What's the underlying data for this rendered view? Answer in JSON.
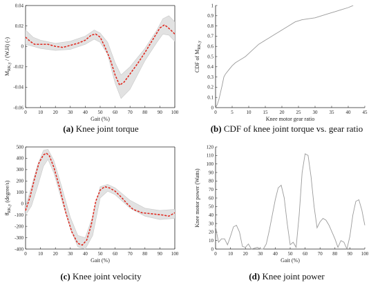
{
  "chart_data": [
    {
      "type": "line",
      "caption_letter": "(a)",
      "caption_text": "Knee joint torque",
      "xlabel": "Gait (%)",
      "ylabel_main": "M",
      "ylabel_sub": "RK,y",
      "ylabel_tail": "/ (W.H) (-)",
      "xlim": [
        0,
        100
      ],
      "ylim": [
        -0.06,
        0.04
      ],
      "xticks": [
        0,
        10,
        20,
        30,
        40,
        50,
        60,
        70,
        80,
        90,
        100
      ],
      "yticks": [
        -0.06,
        -0.04,
        -0.02,
        0,
        0.02,
        0.04
      ],
      "ytick_labels": [
        "-0.06",
        "-0.04",
        "-0.02",
        "0",
        "0.02",
        "0.04"
      ],
      "box": true,
      "series": [
        {
          "style": "mean-dashed-red",
          "x": [
            0,
            3,
            6,
            10,
            15,
            20,
            25,
            30,
            35,
            40,
            44,
            47,
            50,
            53,
            57,
            60,
            63,
            66,
            70,
            75,
            80,
            85,
            90,
            93,
            95,
            98,
            100
          ],
          "y": [
            0.009,
            0.005,
            0.002,
            0.002,
            0.002,
            0.0,
            -0.001,
            0.001,
            0.003,
            0.006,
            0.011,
            0.012,
            0.009,
            0.0,
            -0.014,
            -0.028,
            -0.038,
            -0.035,
            -0.027,
            -0.017,
            -0.006,
            0.006,
            0.018,
            0.021,
            0.019,
            0.015,
            0.012
          ]
        },
        {
          "style": "gray-envelope-upper",
          "x": [
            0,
            5,
            10,
            20,
            30,
            40,
            46,
            50,
            55,
            60,
            64,
            70,
            80,
            88,
            92,
            96,
            100
          ],
          "y": [
            0.016,
            0.009,
            0.006,
            0.003,
            0.005,
            0.01,
            0.016,
            0.013,
            0.004,
            -0.016,
            -0.028,
            -0.02,
            -0.002,
            0.016,
            0.027,
            0.03,
            0.024
          ]
        },
        {
          "style": "gray-envelope-lower",
          "x": [
            0,
            5,
            10,
            20,
            30,
            40,
            46,
            50,
            55,
            60,
            64,
            70,
            80,
            88,
            92,
            96,
            100
          ],
          "y": [
            0.002,
            0.0,
            -0.002,
            -0.004,
            -0.003,
            0.002,
            0.007,
            0.004,
            -0.008,
            -0.036,
            -0.051,
            -0.042,
            -0.014,
            0.004,
            0.012,
            0.011,
            0.005
          ]
        }
      ]
    },
    {
      "type": "line",
      "caption_letter": "(b)",
      "caption_text": "CDF of knee joint torque vs. gear ratio",
      "xlabel": "Knee motor gear ratio",
      "ylabel_main": "CDF of M",
      "ylabel_sub": "RK,y",
      "ylabel_tail": "",
      "xlim": [
        0,
        45
      ],
      "ylim": [
        0,
        1
      ],
      "xticks": [
        0,
        5,
        10,
        15,
        20,
        25,
        30,
        35,
        40,
        45
      ],
      "yticks": [
        0,
        0.1,
        0.2,
        0.3,
        0.4,
        0.5,
        0.6,
        0.7,
        0.8,
        0.9,
        1
      ],
      "ytick_labels": [
        "0",
        "0.1",
        "0.2",
        "0.3",
        "0.4",
        "0.5",
        "0.6",
        "0.7",
        "0.8",
        "0.9",
        "1"
      ],
      "box": false,
      "series": [
        {
          "style": "gray-step",
          "x": [
            0,
            0.5,
            1,
            1.5,
            2,
            2.5,
            3,
            4,
            5,
            6,
            7,
            8,
            9,
            10,
            11,
            12,
            13,
            14,
            15,
            16,
            17,
            18,
            19,
            20,
            22,
            24,
            26,
            28,
            30,
            32,
            34,
            36,
            38,
            40,
            41.5
          ],
          "y": [
            0,
            0.03,
            0.08,
            0.15,
            0.22,
            0.3,
            0.33,
            0.37,
            0.41,
            0.44,
            0.46,
            0.48,
            0.5,
            0.53,
            0.56,
            0.59,
            0.62,
            0.64,
            0.66,
            0.68,
            0.7,
            0.72,
            0.74,
            0.76,
            0.8,
            0.84,
            0.86,
            0.87,
            0.88,
            0.9,
            0.92,
            0.94,
            0.96,
            0.98,
            1.0
          ]
        }
      ]
    },
    {
      "type": "line",
      "caption_letter": "(c)",
      "caption_text": "Knee joint velocity",
      "xlabel": "Gait (%)",
      "ylabel_main": "θ̇",
      "ylabel_sub": "RK,y",
      "ylabel_tail": "(degree/s)",
      "xlim": [
        0,
        100
      ],
      "ylim": [
        -400,
        500
      ],
      "xticks": [
        0,
        10,
        20,
        30,
        40,
        50,
        60,
        70,
        80,
        90,
        100
      ],
      "yticks": [
        -400,
        -300,
        -200,
        -100,
        0,
        100,
        200,
        300,
        400,
        500
      ],
      "ytick_labels": [
        "-400",
        "-300",
        "-200",
        "-100",
        "0",
        "100",
        "200",
        "300",
        "400",
        "500"
      ],
      "box": true,
      "series": [
        {
          "style": "mean-dashed-red",
          "x": [
            0,
            3,
            6,
            9,
            12,
            14,
            16,
            19,
            23,
            27,
            31,
            35,
            38,
            41,
            44,
            47,
            50,
            53,
            56,
            60,
            64,
            68,
            72,
            78,
            85,
            92,
            96,
            100
          ],
          "y": [
            -60,
            60,
            220,
            360,
            430,
            445,
            420,
            320,
            130,
            -80,
            -250,
            -350,
            -365,
            -320,
            -190,
            20,
            120,
            150,
            140,
            110,
            60,
            0,
            -50,
            -80,
            -90,
            -100,
            -110,
            -80
          ]
        },
        {
          "style": "gray-envelope-upper",
          "x": [
            0,
            4,
            8,
            12,
            15,
            19,
            24,
            30,
            35,
            40,
            45,
            50,
            55,
            60,
            70,
            80,
            90,
            100
          ],
          "y": [
            -20,
            150,
            340,
            470,
            480,
            380,
            160,
            -120,
            -280,
            -300,
            -110,
            150,
            170,
            140,
            30,
            -40,
            -60,
            -50
          ]
        },
        {
          "style": "gray-envelope-lower",
          "x": [
            0,
            4,
            8,
            12,
            15,
            19,
            24,
            30,
            35,
            40,
            45,
            50,
            55,
            60,
            70,
            80,
            90,
            100
          ],
          "y": [
            -100,
            -20,
            150,
            330,
            390,
            270,
            40,
            -220,
            -380,
            -400,
            -280,
            50,
            110,
            80,
            -40,
            -110,
            -140,
            -130
          ]
        }
      ]
    },
    {
      "type": "line",
      "caption_letter": "(d)",
      "caption_text": "Knee joint power",
      "xlabel": "Gait (%)",
      "ylabel_main": "Knee motor power (Watts)",
      "ylabel_sub": "",
      "ylabel_tail": "",
      "xlim": [
        0,
        100
      ],
      "ylim": [
        0,
        120
      ],
      "xticks": [
        0,
        10,
        20,
        30,
        40,
        50,
        60,
        70,
        80,
        90,
        100
      ],
      "yticks": [
        0,
        10,
        20,
        30,
        40,
        50,
        60,
        70,
        80,
        90,
        100,
        110,
        120
      ],
      "ytick_labels": [
        "0",
        "10",
        "20",
        "30",
        "40",
        "50",
        "60",
        "70",
        "80",
        "90",
        "100",
        "110",
        "120"
      ],
      "box": false,
      "series": [
        {
          "style": "gray-line",
          "x": [
            0,
            2,
            4,
            6,
            8,
            10,
            12,
            14,
            16,
            18,
            20,
            22,
            24,
            26,
            28,
            30,
            32,
            34,
            36,
            38,
            40,
            42,
            44,
            46,
            48,
            50,
            52,
            54,
            56,
            58,
            60,
            62,
            64,
            66,
            68,
            70,
            72,
            74,
            76,
            78,
            80,
            82,
            84,
            86,
            88,
            90,
            92,
            94,
            96,
            98,
            100
          ],
          "y": [
            26,
            8,
            12,
            12,
            5,
            15,
            26,
            28,
            20,
            3,
            2,
            6,
            0,
            1,
            2,
            0,
            0,
            6,
            22,
            40,
            58,
            72,
            75,
            60,
            30,
            5,
            8,
            2,
            40,
            90,
            112,
            110,
            85,
            50,
            25,
            32,
            36,
            34,
            28,
            20,
            12,
            2,
            10,
            8,
            0,
            15,
            40,
            56,
            58,
            46,
            28
          ]
        }
      ]
    }
  ]
}
